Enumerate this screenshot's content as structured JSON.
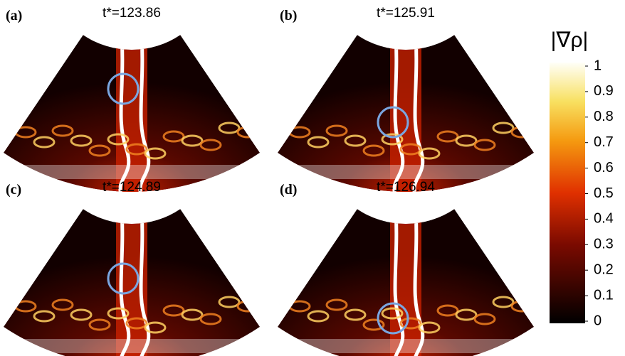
{
  "panels": [
    {
      "label": "(a)",
      "time": "t*=123.86"
    },
    {
      "label": "(b)",
      "time": "t*=125.91"
    },
    {
      "label": "(c)",
      "time": "t*=124.89"
    },
    {
      "label": "(d)",
      "time": "t*=126.94"
    }
  ],
  "colorbar": {
    "title": "|∇ρ|",
    "ticks": [
      1,
      0.9,
      0.8,
      0.7,
      0.6,
      0.5,
      0.4,
      0.3,
      0.2,
      0.1,
      0
    ],
    "lim": [
      0,
      1
    ]
  }
}
